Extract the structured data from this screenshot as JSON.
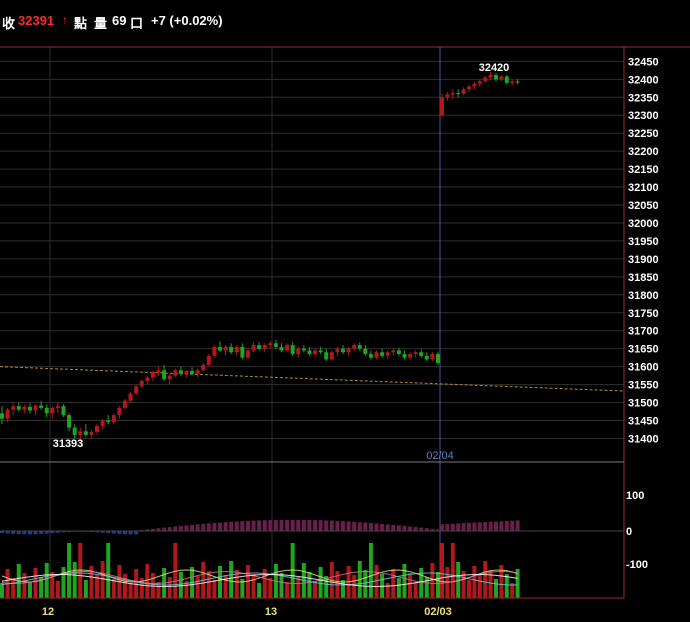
{
  "header": {
    "close_label": "收",
    "close_price": "32391",
    "unit_label": "點",
    "volume_label": "量",
    "volume_value": "69",
    "volume_unit": "口",
    "change": "+7 (+0.02%)"
  },
  "colors": {
    "up": "#b0181c",
    "down": "#1fa51f",
    "frame": "#9a2a2a",
    "grid": "#2e2e2e",
    "date_line": "#3d5a9e",
    "trend": "#b08a3a",
    "price_red": "#ff2a2a"
  },
  "chart_data": {
    "type": "candlestick",
    "price_axis": {
      "ticks": [
        32450,
        32400,
        32350,
        32300,
        32250,
        32200,
        32150,
        32100,
        32050,
        32000,
        31950,
        31900,
        31850,
        31800,
        31750,
        31700,
        31650,
        31600,
        31550,
        31500,
        31450,
        31400
      ],
      "range": [
        31340,
        32490
      ]
    },
    "annotations": {
      "high": "32420",
      "low": "31393",
      "marker_date": "02/04"
    },
    "x_labels": [
      "12",
      "13",
      "02/03"
    ],
    "indicator_axis": {
      "ticks": [
        "100",
        "0",
        "-100"
      ]
    },
    "candles": [
      [
        31470,
        31490,
        31440,
        31455
      ],
      [
        31455,
        31485,
        31445,
        31480
      ],
      [
        31480,
        31500,
        31465,
        31490
      ],
      [
        31490,
        31500,
        31475,
        31480
      ],
      [
        31480,
        31495,
        31470,
        31488
      ],
      [
        31488,
        31498,
        31470,
        31478
      ],
      [
        31478,
        31495,
        31465,
        31492
      ],
      [
        31492,
        31505,
        31480,
        31485
      ],
      [
        31485,
        31495,
        31460,
        31470
      ],
      [
        31470,
        31490,
        31455,
        31485
      ],
      [
        31485,
        31500,
        31470,
        31490
      ],
      [
        31490,
        31495,
        31460,
        31465
      ],
      [
        31465,
        31470,
        31420,
        31430
      ],
      [
        31430,
        31440,
        31400,
        31410
      ],
      [
        31410,
        31430,
        31393,
        31420
      ],
      [
        31420,
        31440,
        31405,
        31410
      ],
      [
        31410,
        31425,
        31400,
        31418
      ],
      [
        31418,
        31440,
        31410,
        31435
      ],
      [
        31435,
        31455,
        31425,
        31450
      ],
      [
        31450,
        31465,
        31440,
        31445
      ],
      [
        31445,
        31470,
        31440,
        31465
      ],
      [
        31465,
        31490,
        31455,
        31485
      ],
      [
        31485,
        31510,
        31480,
        31505
      ],
      [
        31505,
        31530,
        31500,
        31525
      ],
      [
        31525,
        31550,
        31520,
        31545
      ],
      [
        31545,
        31565,
        31540,
        31560
      ],
      [
        31560,
        31575,
        31550,
        31570
      ],
      [
        31570,
        31590,
        31560,
        31585
      ],
      [
        31585,
        31600,
        31575,
        31590
      ],
      [
        31590,
        31605,
        31560,
        31565
      ],
      [
        31565,
        31580,
        31550,
        31575
      ],
      [
        31575,
        31595,
        31570,
        31590
      ],
      [
        31590,
        31600,
        31575,
        31580
      ],
      [
        31580,
        31590,
        31570,
        31588
      ],
      [
        31588,
        31598,
        31575,
        31580
      ],
      [
        31580,
        31595,
        31570,
        31590
      ],
      [
        31590,
        31610,
        31585,
        31605
      ],
      [
        31605,
        31635,
        31600,
        31630
      ],
      [
        31630,
        31660,
        31625,
        31655
      ],
      [
        31655,
        31670,
        31640,
        31645
      ],
      [
        31645,
        31660,
        31630,
        31655
      ],
      [
        31655,
        31665,
        31635,
        31640
      ],
      [
        31640,
        31660,
        31630,
        31655
      ],
      [
        31655,
        31665,
        31620,
        31625
      ],
      [
        31625,
        31650,
        31620,
        31645
      ],
      [
        31645,
        31668,
        31640,
        31660
      ],
      [
        31660,
        31668,
        31645,
        31650
      ],
      [
        31650,
        31665,
        31640,
        31660
      ],
      [
        31660,
        31672,
        31650,
        31665
      ],
      [
        31665,
        31675,
        31650,
        31655
      ],
      [
        31655,
        31665,
        31640,
        31645
      ],
      [
        31645,
        31665,
        31640,
        31660
      ],
      [
        31660,
        31668,
        31630,
        31635
      ],
      [
        31635,
        31655,
        31625,
        31650
      ],
      [
        31650,
        31660,
        31640,
        31645
      ],
      [
        31645,
        31655,
        31630,
        31635
      ],
      [
        31635,
        31650,
        31628,
        31645
      ],
      [
        31645,
        31655,
        31635,
        31640
      ],
      [
        31640,
        31650,
        31615,
        31620
      ],
      [
        31620,
        31645,
        31615,
        31640
      ],
      [
        31640,
        31655,
        31630,
        31650
      ],
      [
        31650,
        31660,
        31635,
        31640
      ],
      [
        31640,
        31655,
        31630,
        31650
      ],
      [
        31650,
        31665,
        31645,
        31660
      ],
      [
        31660,
        31668,
        31645,
        31650
      ],
      [
        31650,
        31660,
        31630,
        31635
      ],
      [
        31635,
        31645,
        31620,
        31625
      ],
      [
        31625,
        31645,
        31620,
        31640
      ],
      [
        31640,
        31650,
        31625,
        31630
      ],
      [
        31630,
        31645,
        31622,
        31640
      ],
      [
        31640,
        31650,
        31630,
        31645
      ],
      [
        31645,
        31652,
        31630,
        31635
      ],
      [
        31635,
        31645,
        31620,
        31625
      ],
      [
        31625,
        31640,
        31618,
        31635
      ],
      [
        31635,
        31645,
        31625,
        31640
      ],
      [
        31640,
        31648,
        31625,
        31630
      ],
      [
        31630,
        31640,
        31615,
        31620
      ],
      [
        31620,
        31640,
        31615,
        31635
      ],
      [
        31635,
        31642,
        31605,
        31610
      ],
      [
        32300,
        32360,
        32295,
        32350
      ],
      [
        32350,
        32365,
        32340,
        32358
      ],
      [
        32358,
        32370,
        32345,
        32362
      ],
      [
        32362,
        32372,
        32350,
        32360
      ],
      [
        32360,
        32378,
        32355,
        32372
      ],
      [
        32372,
        32385,
        32365,
        32380
      ],
      [
        32380,
        32392,
        32372,
        32388
      ],
      [
        32388,
        32400,
        32380,
        32395
      ],
      [
        32395,
        32410,
        32390,
        32405
      ],
      [
        32405,
        32420,
        32398,
        32412
      ],
      [
        32412,
        32418,
        32395,
        32400
      ],
      [
        32400,
        32412,
        32395,
        32408
      ],
      [
        32408,
        32412,
        32385,
        32390
      ],
      [
        32390,
        32398,
        32382,
        32394
      ],
      [
        32394,
        32400,
        32386,
        32391
      ]
    ]
  }
}
